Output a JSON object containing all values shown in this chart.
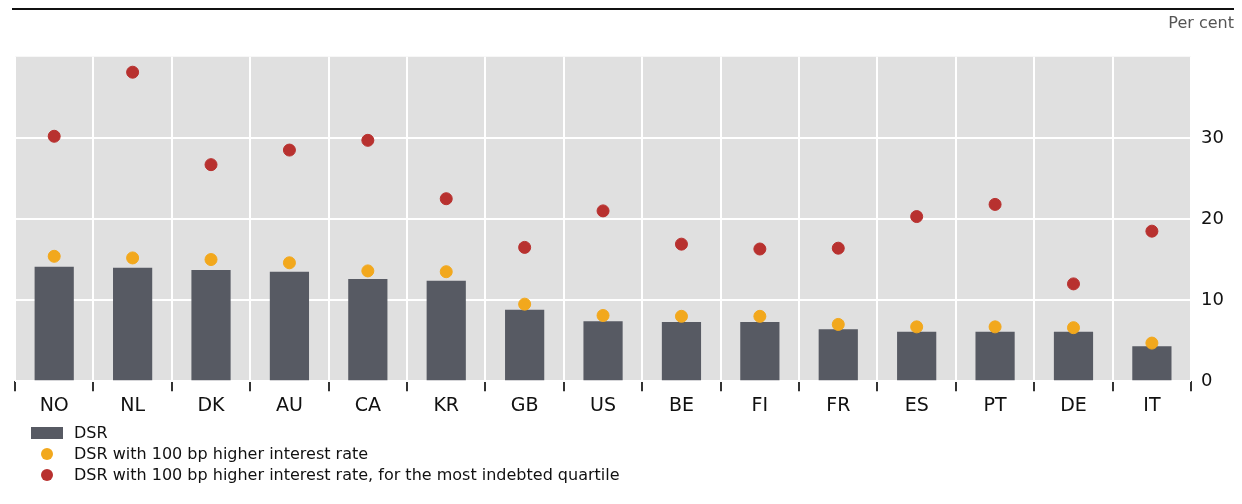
{
  "chart_data": {
    "type": "bar",
    "ylabel": "Per cent",
    "categories": [
      "NO",
      "NL",
      "DK",
      "AU",
      "CA",
      "KR",
      "GB",
      "US",
      "BE",
      "FI",
      "FR",
      "ES",
      "PT",
      "DE",
      "IT"
    ],
    "series": [
      {
        "name": "DSR",
        "color": "#575a63",
        "values": [
          14.1,
          14.0,
          13.7,
          13.5,
          12.6,
          12.4,
          8.8,
          7.4,
          7.3,
          7.3,
          6.4,
          6.1,
          6.1,
          6.1,
          4.3
        ]
      },
      {
        "name": "DSR with 100 bp higher interest rate",
        "type": "scatter",
        "color": "#f2a81d",
        "values": [
          15.4,
          15.2,
          15.0,
          14.6,
          13.6,
          13.5,
          9.5,
          8.1,
          8.0,
          8.0,
          7.0,
          6.7,
          6.7,
          6.6,
          4.7
        ]
      },
      {
        "name": "DSR with 100 bp higher interest rate, for the most indebted quartile",
        "type": "scatter",
        "color": "#b8312f",
        "values": [
          30.2,
          38.1,
          26.7,
          28.5,
          29.7,
          22.5,
          16.5,
          21.0,
          16.9,
          16.3,
          16.4,
          20.3,
          21.8,
          12.0,
          18.5
        ]
      }
    ],
    "ylim": [
      0,
      40
    ],
    "yticks": [
      0,
      10,
      20,
      30
    ],
    "grid": true,
    "legend": "bottom left",
    "marker": "circle"
  }
}
